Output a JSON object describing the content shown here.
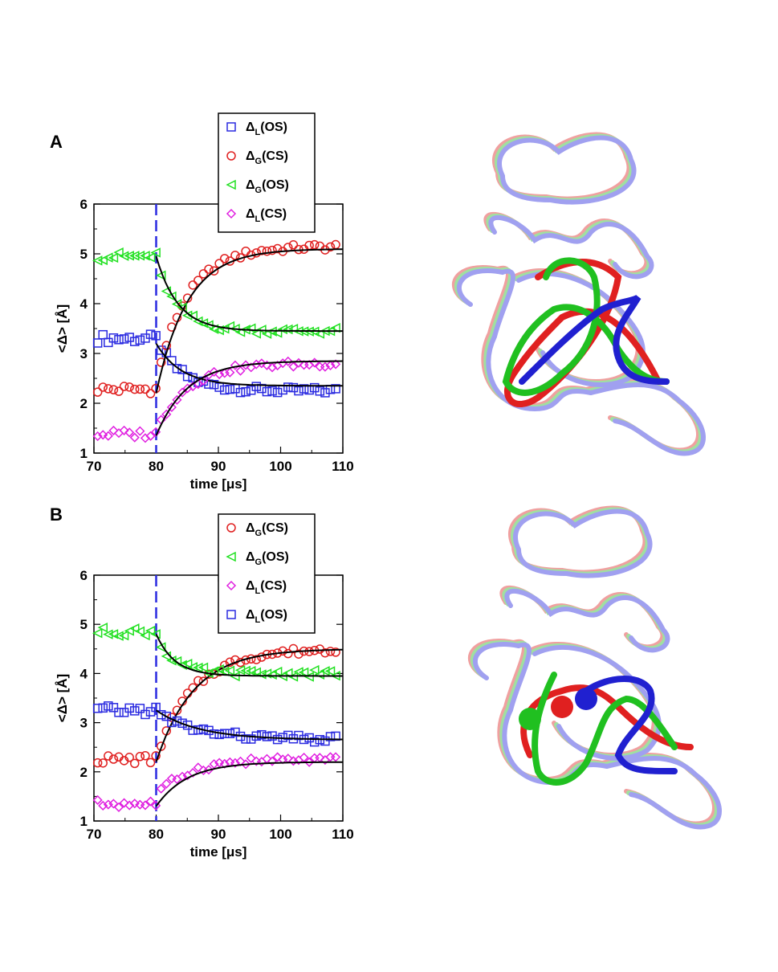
{
  "chart_data": [
    {
      "type": "scatter",
      "panel": "A",
      "xlabel": "time [μs]",
      "ylabel": "<Δ> [Å]",
      "xlim": [
        70,
        110
      ],
      "ylim": [
        1,
        6
      ],
      "xticks": [
        70,
        80,
        90,
        100,
        110
      ],
      "yticks": [
        1,
        2,
        3,
        4,
        5,
        6
      ],
      "vline_x": 80,
      "legend_position": "top",
      "series": [
        {
          "key": "L_OS",
          "delta": "Δ",
          "sub": "L",
          "state": "(OS)",
          "color": "#2a2ae0",
          "marker": "square",
          "pre": 3.3,
          "start": 3.3,
          "end": 2.25,
          "tau": 4,
          "fit": [
            3.2,
            2.35,
            4
          ]
        },
        {
          "key": "G_CS",
          "delta": "Δ",
          "sub": "G",
          "state": "(CS)",
          "color": "#e02020",
          "marker": "circle",
          "pre": 2.28,
          "start": 2.4,
          "end": 5.15,
          "tau": 5,
          "fit": [
            2.2,
            5.1,
            5
          ]
        },
        {
          "key": "G_OS",
          "delta": "Δ",
          "sub": "G",
          "state": "(OS)",
          "color": "#20e020",
          "marker": "triangle",
          "pre": 4.95,
          "start": 4.8,
          "end": 3.45,
          "tau": 3.5,
          "fit": [
            4.95,
            3.45,
            3.5
          ]
        },
        {
          "key": "L_CS",
          "delta": "Δ",
          "sub": "L",
          "state": "(CS)",
          "color": "#e020e0",
          "marker": "diamond",
          "pre": 1.38,
          "start": 1.45,
          "end": 2.8,
          "tau": 5,
          "fit": [
            1.35,
            2.85,
            5
          ]
        }
      ]
    },
    {
      "type": "scatter",
      "panel": "B",
      "xlabel": "time [μs]",
      "ylabel": "<Δ> [Å]",
      "xlim": [
        70,
        110
      ],
      "ylim": [
        1,
        6
      ],
      "xticks": [
        70,
        80,
        90,
        100,
        110
      ],
      "yticks": [
        1,
        2,
        3,
        4,
        5,
        6
      ],
      "vline_x": 80,
      "legend_position": "top",
      "series": [
        {
          "key": "G_CS",
          "delta": "Δ",
          "sub": "G",
          "state": "(CS)",
          "color": "#e02020",
          "marker": "circle",
          "pre": 2.25,
          "start": 2.3,
          "end": 4.5,
          "tau": 6,
          "fit": [
            2.2,
            4.5,
            6
          ]
        },
        {
          "key": "G_OS",
          "delta": "Δ",
          "sub": "G",
          "state": "(OS)",
          "color": "#20e020",
          "marker": "triangle",
          "pre": 4.85,
          "start": 4.7,
          "end": 4.0,
          "tau": 3,
          "fit": [
            4.8,
            3.95,
            3
          ]
        },
        {
          "key": "L_CS",
          "delta": "Δ",
          "sub": "L",
          "state": "(CS)",
          "color": "#e020e0",
          "marker": "diamond",
          "pre": 1.35,
          "start": 1.5,
          "end": 2.25,
          "tau": 5,
          "fit": [
            1.3,
            2.2,
            5
          ]
        },
        {
          "key": "L_OS",
          "delta": "Δ",
          "sub": "L",
          "state": "(OS)",
          "color": "#2a2ae0",
          "marker": "square",
          "pre": 3.25,
          "start": 3.2,
          "end": 2.65,
          "tau": 7,
          "fit": [
            3.25,
            2.65,
            7
          ]
        }
      ]
    }
  ],
  "structures": [
    {
      "panel": "A",
      "ribbon_colors": [
        "#e02020",
        "#20c020",
        "#2020d0"
      ],
      "ghost_colors": [
        "#f0a0a0",
        "#a0e0a0",
        "#a0a0f0"
      ]
    },
    {
      "panel": "B",
      "ribbon_colors": [
        "#e02020",
        "#20c020",
        "#2020d0"
      ],
      "ghost_colors": [
        "#f0a0a0",
        "#a0e0a0",
        "#a0a0f0"
      ]
    }
  ]
}
